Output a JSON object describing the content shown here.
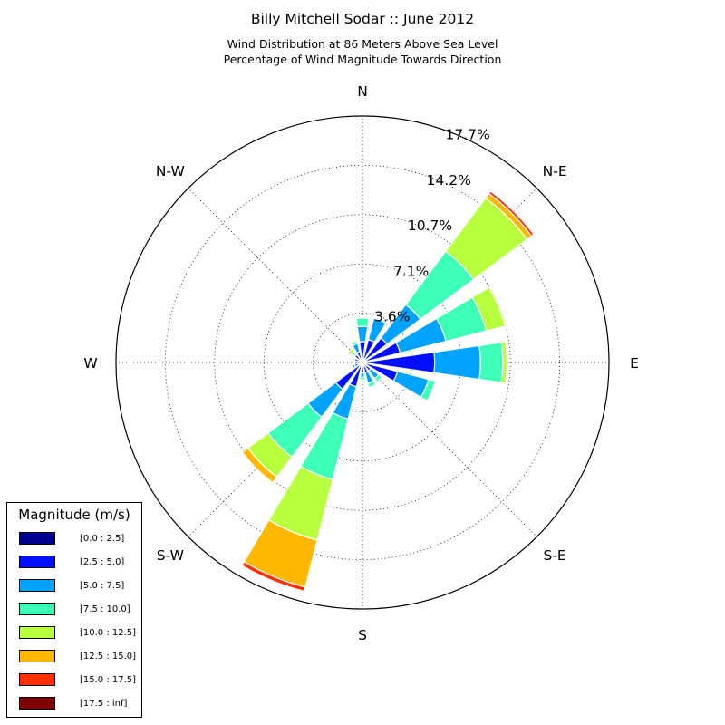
{
  "title": "Billy Mitchell Sodar :: June 2012",
  "subtitle_line1": "Wind Distribution at 86 Meters Above Sea Level",
  "subtitle_line2": "Percentage of Wind Magnitude Towards Direction",
  "chart_data": {
    "type": "windrose",
    "direction_labels": [
      "N",
      "N-E",
      "E",
      "S-E",
      "S",
      "S-W",
      "W",
      "N-W"
    ],
    "radial_ticks": [
      "3.6%",
      "7.1%",
      "10.7%",
      "14.2%",
      "17.7%"
    ],
    "radial_tick_values": [
      3.55,
      7.1,
      10.65,
      14.2,
      17.75
    ],
    "radial_max": 17.75,
    "legend_title": "Magnitude (m/s)",
    "bins": [
      {
        "label": "[0.0 : 2.5]",
        "color": "#00008f"
      },
      {
        "label": "[2.5 : 5.0]",
        "color": "#0010ff"
      },
      {
        "label": "[5.0 : 7.5]",
        "color": "#00a4ff"
      },
      {
        "label": "[7.5 : 10.0]",
        "color": "#3effb8"
      },
      {
        "label": "[10.0 : 12.5]",
        "color": "#b8ff3e"
      },
      {
        "label": "[12.5 : 15.0]",
        "color": "#ffb800"
      },
      {
        "label": "[15.0 : 17.5]",
        "color": "#ff2e00"
      },
      {
        "label": "[17.5 : inf]",
        "color": "#800000"
      }
    ],
    "sectors": [
      {
        "direction_deg": 0,
        "values": [
          0.1,
          1.4,
          1.1,
          0.6,
          0.05,
          0,
          0,
          0
        ]
      },
      {
        "direction_deg": 22.5,
        "values": [
          0.15,
          1.55,
          1.6,
          0,
          0,
          0,
          0,
          0
        ]
      },
      {
        "direction_deg": 45,
        "values": [
          0.2,
          2.0,
          3.0,
          4.8,
          4.8,
          0.4,
          0.2,
          0
        ]
      },
      {
        "direction_deg": 67.5,
        "values": [
          0.2,
          2.6,
          3.4,
          3.0,
          1.4,
          0.1,
          0,
          0
        ]
      },
      {
        "direction_deg": 90,
        "values": [
          0.2,
          5.0,
          3.3,
          1.6,
          0.3,
          0,
          0,
          0
        ]
      },
      {
        "direction_deg": 112.5,
        "values": [
          0.2,
          2.4,
          2.3,
          0.5,
          0,
          0,
          0,
          0
        ]
      },
      {
        "direction_deg": 135,
        "values": [
          0.15,
          0.6,
          0.7,
          0.3,
          0,
          0,
          0,
          0
        ]
      },
      {
        "direction_deg": 157.5,
        "values": [
          0.15,
          0.6,
          0.8,
          0.3,
          0,
          0,
          0,
          0
        ]
      },
      {
        "direction_deg": 180,
        "values": [
          0.15,
          0.6,
          0.3,
          0.2,
          0.1,
          0,
          0,
          0
        ]
      },
      {
        "direction_deg": 202.5,
        "values": [
          0.2,
          1.6,
          2.4,
          4.5,
          4.5,
          3.5,
          0.3,
          0
        ]
      },
      {
        "direction_deg": 225,
        "values": [
          0.2,
          2.2,
          2.5,
          3.6,
          1.8,
          0.5,
          0,
          0
        ]
      },
      {
        "direction_deg": 247.5,
        "values": [
          0.2,
          0.4,
          0.2,
          0,
          0,
          0,
          0,
          0
        ]
      },
      {
        "direction_deg": 270,
        "values": [
          0.15,
          0.4,
          0,
          0,
          0,
          0,
          0,
          0
        ]
      },
      {
        "direction_deg": 292.5,
        "values": [
          0.2,
          0.4,
          0.1,
          0,
          0,
          0,
          0,
          0
        ]
      },
      {
        "direction_deg": 315,
        "values": [
          0.1,
          0.6,
          0.1,
          0.15,
          0.3,
          0,
          0,
          0
        ]
      },
      {
        "direction_deg": 337.5,
        "values": [
          0.2,
          0.6,
          0.6,
          0.2,
          0.1,
          0,
          0,
          0
        ]
      }
    ]
  }
}
